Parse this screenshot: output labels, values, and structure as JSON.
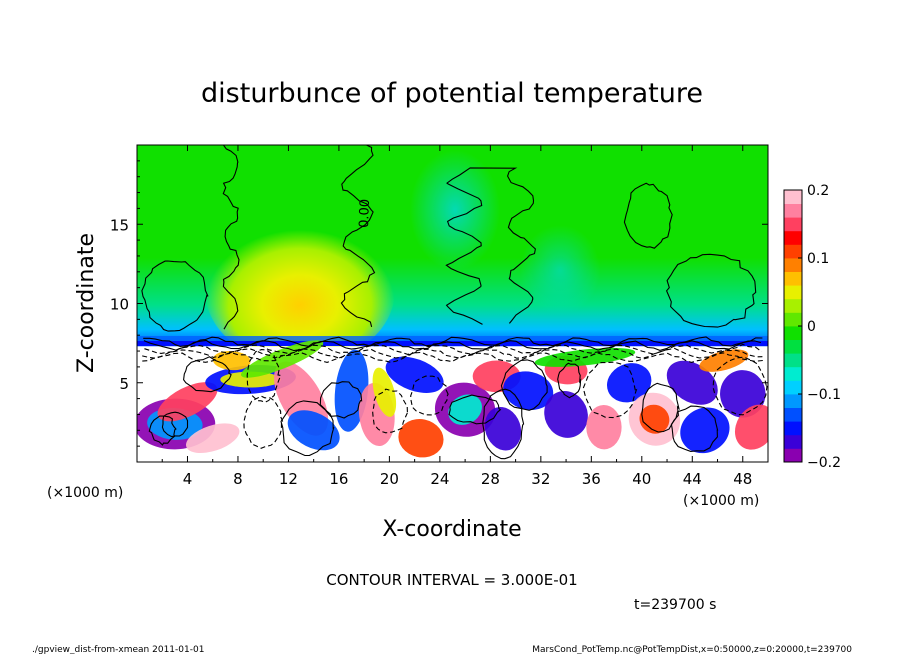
{
  "chart_data": {
    "type": "heatmap",
    "title": "disturbunce of potential temperature",
    "xlabel": "X-coordinate",
    "ylabel": "Z-coordinate",
    "x_unit": "(×1000 m)",
    "y_unit": "(×1000 m)",
    "xlim": [
      0,
      50
    ],
    "ylim": [
      0,
      20
    ],
    "x_ticks": [
      4,
      8,
      12,
      16,
      20,
      24,
      28,
      32,
      36,
      40,
      44,
      48
    ],
    "y_ticks": [
      5,
      10,
      15
    ],
    "colorbar": {
      "min": -0.2,
      "max": 0.2,
      "tick_values": [
        0.2,
        0.1,
        0,
        -0.1,
        -0.2
      ],
      "tick_labels": [
        "0.2",
        "0.1",
        "0",
        "−0.1",
        "−0.2"
      ],
      "colors": [
        "#8a00b0",
        "#3a00d8",
        "#0010ff",
        "#0050ff",
        "#0098ff",
        "#00d0ff",
        "#00ecd0",
        "#00e088",
        "#00e040",
        "#10e000",
        "#60e800",
        "#a8f000",
        "#e8f000",
        "#ffc000",
        "#ff8000",
        "#ff4000",
        "#ff0000",
        "#ff4060",
        "#ff80a0",
        "#ffc0d0"
      ]
    },
    "contour_interval_text": "CONTOUR INTERVAL = 3.000E-01",
    "contour_label": "0.00",
    "time_text": "t=239700 s",
    "grid": false
  },
  "footer": {
    "left": "./gpview_dist-from-xmean  2011-01-01",
    "right": "MarsCond_PotTemp.nc@PotTempDist,x=0:50000,z=0:20000,t=239700"
  }
}
